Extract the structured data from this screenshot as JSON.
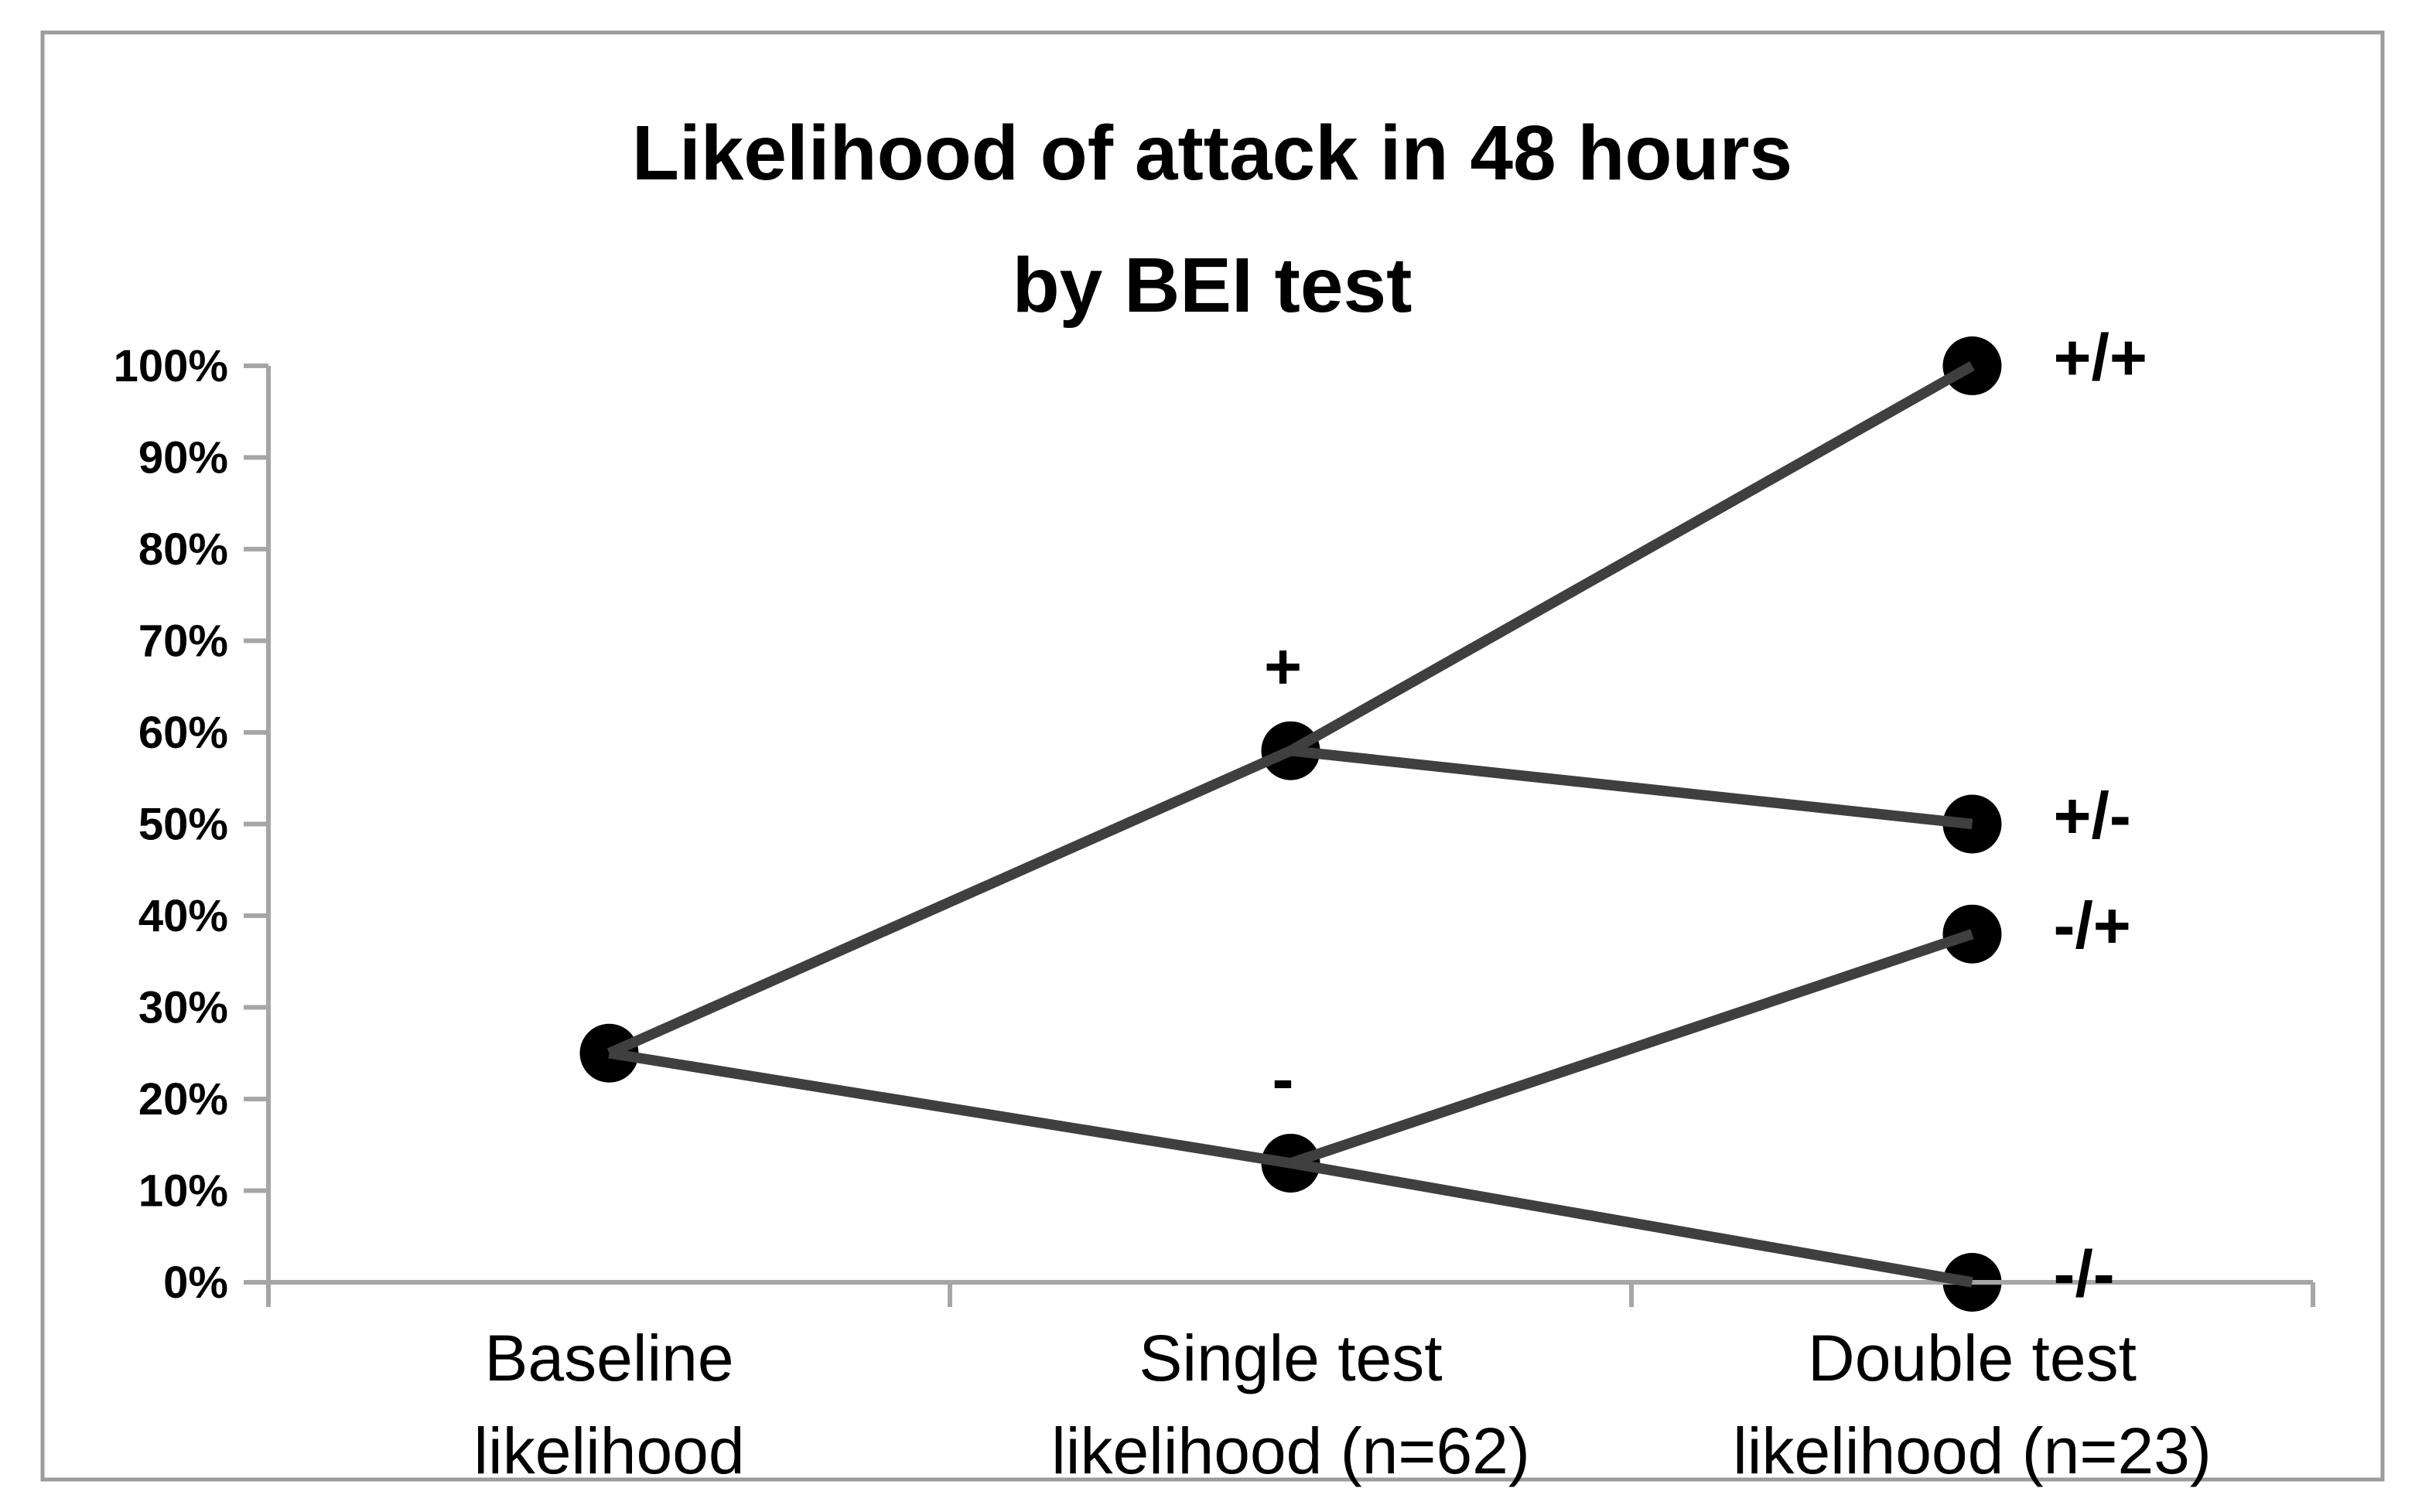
{
  "figure": {
    "background_color": "#ffffff",
    "border_color": "#9c9c9c"
  },
  "chart_data": {
    "type": "line",
    "title_line1": "Likelihood of attack in 48 hours",
    "title_line2": "by BEI test",
    "y_axis": {
      "min": 0,
      "max": 100,
      "step": 10,
      "ticks": [
        {
          "value": 100,
          "label": "100%"
        },
        {
          "value": 90,
          "label": "90%"
        },
        {
          "value": 80,
          "label": "80%"
        },
        {
          "value": 70,
          "label": "70%"
        },
        {
          "value": 60,
          "label": "60%"
        },
        {
          "value": 50,
          "label": "50%"
        },
        {
          "value": 40,
          "label": "40%"
        },
        {
          "value": 30,
          "label": "30%"
        },
        {
          "value": 20,
          "label": "20%"
        },
        {
          "value": 10,
          "label": "10%"
        },
        {
          "value": 0,
          "label": "0%"
        }
      ]
    },
    "categories": [
      {
        "line1": "Baseline",
        "line2": "likelihood"
      },
      {
        "line1": "Single test",
        "line2": "likelihood (n=62)"
      },
      {
        "line1": "Double test",
        "line2": "likelihood (n=23)"
      }
    ],
    "nodes": [
      {
        "id": "baseline",
        "category": 0,
        "value": 25,
        "label": "",
        "label_position": "none"
      },
      {
        "id": "single-positive",
        "category": 1,
        "value": 58,
        "label": "+",
        "label_position": "above"
      },
      {
        "id": "single-negative",
        "category": 1,
        "value": 13,
        "label": "-",
        "label_position": "above"
      },
      {
        "id": "double-pos-pos",
        "category": 2,
        "value": 100,
        "label": "+/+",
        "label_position": "right"
      },
      {
        "id": "double-pos-neg",
        "category": 2,
        "value": 50,
        "label": "+/-",
        "label_position": "right"
      },
      {
        "id": "double-neg-pos",
        "category": 2,
        "value": 38,
        "label": "-/+",
        "label_position": "right"
      },
      {
        "id": "double-neg-neg",
        "category": 2,
        "value": 0,
        "label": "-/-",
        "label_position": "right"
      }
    ],
    "edges": [
      [
        "baseline",
        "single-positive"
      ],
      [
        "baseline",
        "single-negative"
      ],
      [
        "single-positive",
        "double-pos-pos"
      ],
      [
        "single-positive",
        "double-pos-neg"
      ],
      [
        "single-negative",
        "double-neg-pos"
      ],
      [
        "single-negative",
        "double-neg-neg"
      ]
    ],
    "colors": {
      "connector_line": "#3f3f3f",
      "marker": "#000000",
      "axis": "#a6a6a6",
      "text": "#000000"
    },
    "legend": null,
    "grid": false
  }
}
